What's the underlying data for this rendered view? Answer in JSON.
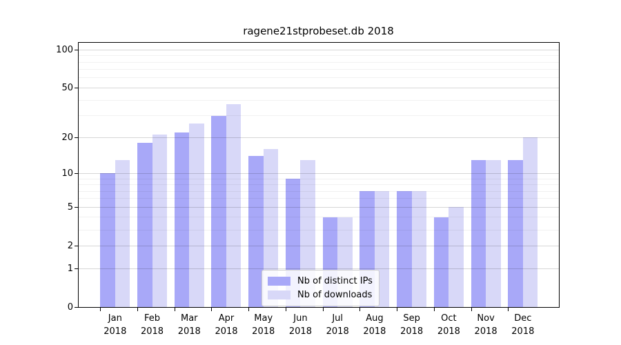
{
  "title": "ragene21stprobeset.db 2018",
  "chart_data": {
    "type": "bar",
    "scale": "log1p",
    "title": "ragene21stprobeset.db 2018",
    "categories": [
      "Jan",
      "Feb",
      "Mar",
      "Apr",
      "May",
      "Jun",
      "Jul",
      "Aug",
      "Sep",
      "Oct",
      "Nov",
      "Dec"
    ],
    "year": "2018",
    "series": [
      {
        "name": "Nb of distinct IPs",
        "color": "#a8a8f8",
        "values": [
          10,
          18,
          22,
          30,
          14,
          9,
          4,
          7,
          7,
          4,
          13,
          13
        ]
      },
      {
        "name": "Nb of downloads",
        "color": "#d8d8f8",
        "values": [
          13,
          21,
          26,
          37,
          16,
          13,
          4,
          7,
          7,
          5,
          13,
          20
        ]
      }
    ],
    "xlabel": "",
    "ylabel": "",
    "ylim": [
      0,
      115
    ],
    "y_ticks": [
      0,
      1,
      2,
      5,
      10,
      20,
      50,
      100
    ],
    "y_gridlines_major": [
      1,
      2,
      5,
      10,
      20,
      50,
      100
    ],
    "y_gridlines_minor": [
      3,
      4,
      6,
      7,
      8,
      9,
      30,
      40,
      60,
      70,
      80,
      90
    ],
    "grid": true,
    "legend_position": "lower center"
  },
  "colors": {
    "distinct_ips": "#a8a8f8",
    "downloads": "#d8d8f8",
    "axis": "#000000",
    "background": "#ffffff"
  }
}
